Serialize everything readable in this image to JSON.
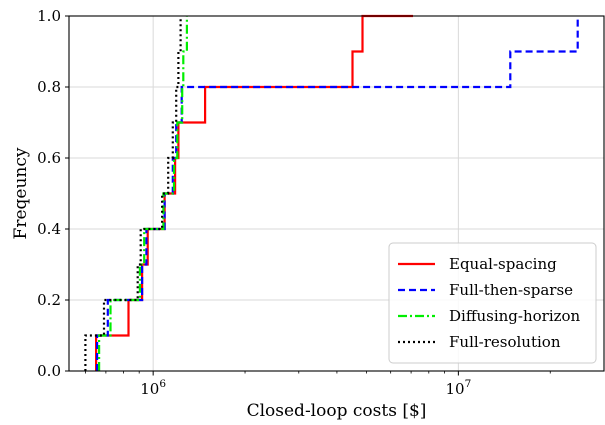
{
  "chart_data": {
    "type": "line",
    "title": "",
    "xlabel": "Closed-loop costs [$]",
    "ylabel": "Freqeuncy",
    "xscale": "log",
    "xlim": [
      530000,
      30000000
    ],
    "ylim": [
      0,
      1.0
    ],
    "grid": true,
    "legend_position": "lower right",
    "x_ticks": [
      {
        "value": 1000000,
        "base": "10",
        "exp": "6"
      },
      {
        "value": 10000000,
        "base": "10",
        "exp": "7"
      }
    ],
    "y_ticks": [
      {
        "value": 0.0,
        "label": "0.0"
      },
      {
        "value": 0.2,
        "label": "0.2"
      },
      {
        "value": 0.4,
        "label": "0.4"
      },
      {
        "value": 0.6,
        "label": "0.6"
      },
      {
        "value": 0.8,
        "label": "0.8"
      },
      {
        "value": 1.0,
        "label": "1.0"
      }
    ],
    "series": [
      {
        "name": "Equal-spacing",
        "color": "#ff0000",
        "dash": "",
        "step_x": [
          650000,
          830000,
          920000,
          960000,
          1090000,
          1180000,
          1210000,
          1480000,
          4500000,
          4850000,
          7100000
        ],
        "step_y": [
          0.1,
          0.2,
          0.3,
          0.4,
          0.5,
          0.6,
          0.7,
          0.8,
          0.9,
          1.0
        ]
      },
      {
        "name": "Full-then-sparse",
        "color": "#0000ff",
        "dash": "7,4",
        "step_x": [
          655000,
          710000,
          920000,
          950000,
          1090000,
          1160000,
          1190000,
          1240000,
          14800000,
          24600000,
          24600000
        ],
        "step_y": [
          0.1,
          0.2,
          0.3,
          0.4,
          0.5,
          0.6,
          0.7,
          0.8,
          0.9,
          1.0
        ]
      },
      {
        "name": "Diffusing-horizon",
        "color": "#00ee00",
        "dash": "9,3,2,3",
        "step_x": [
          665000,
          725000,
          905000,
          935000,
          1080000,
          1170000,
          1200000,
          1245000,
          1255000,
          1290000,
          1290000
        ],
        "step_y": [
          0.1,
          0.2,
          0.3,
          0.4,
          0.5,
          0.6,
          0.7,
          0.8,
          0.9,
          1.0
        ]
      },
      {
        "name": "Full-resolution",
        "color": "#000000",
        "dash": "2,3",
        "step_x": [
          600000,
          690000,
          890000,
          910000,
          1070000,
          1120000,
          1160000,
          1190000,
          1210000,
          1230000,
          1230000
        ],
        "step_y": [
          0.1,
          0.2,
          0.3,
          0.4,
          0.5,
          0.6,
          0.7,
          0.8,
          0.9,
          1.0
        ]
      }
    ]
  }
}
